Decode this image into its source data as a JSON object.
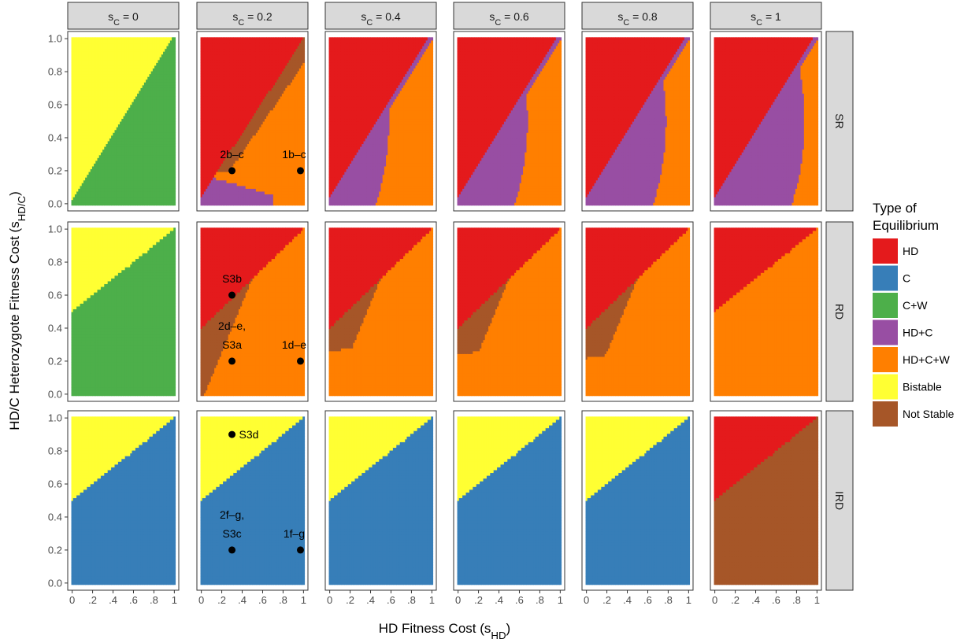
{
  "chart_data": {
    "type": "heatmap",
    "xlabel": "HD Fitness Cost (s",
    "xlabel_sub": "HD",
    "ylabel": "HD/C Heterozygote Fitness Cost (s",
    "ylabel_sub": "HD/C",
    "columns": [
      {
        "label": "s",
        "sub": "C",
        "value": "= 0"
      },
      {
        "label": "s",
        "sub": "C",
        "value": "= 0.2"
      },
      {
        "label": "s",
        "sub": "C",
        "value": "= 0.4"
      },
      {
        "label": "s",
        "sub": "C",
        "value": "= 0.6"
      },
      {
        "label": "s",
        "sub": "C",
        "value": "= 0.8"
      },
      {
        "label": "s",
        "sub": "C",
        "value": "= 1"
      }
    ],
    "rows": [
      "SR",
      "RD",
      "IRD"
    ],
    "xlim": [
      0,
      1
    ],
    "ylim": [
      0,
      1
    ],
    "x_ticks": [
      "0",
      ".2",
      ".4",
      ".6",
      ".8",
      "1"
    ],
    "y_ticks": [
      "0.0",
      "0.2",
      "0.4",
      "0.6",
      "0.8",
      "1.0"
    ],
    "legend": {
      "title_line1": "Type of",
      "title_line2": "Equilibrium",
      "position": "right",
      "entries": [
        {
          "name": "HD",
          "color": "#e41a1c"
        },
        {
          "name": "C",
          "color": "#377eb8"
        },
        {
          "name": "C+W",
          "color": "#4daf4a"
        },
        {
          "name": "HD+C",
          "color": "#984ea3"
        },
        {
          "name": "HD+C+W",
          "color": "#ff7f00"
        },
        {
          "name": "Bistable",
          "color": "#ffff33"
        },
        {
          "name": "Not Stable",
          "color": "#a65628"
        }
      ]
    },
    "points": [
      {
        "row": 0,
        "col": 1,
        "x": 0.3,
        "y": 0.2,
        "label_lines": [
          "2b–c"
        ],
        "label_side": "above"
      },
      {
        "row": 0,
        "col": 1,
        "x": 0.97,
        "y": 0.2,
        "label_lines": [
          "1b–c"
        ],
        "label_side": "above-left"
      },
      {
        "row": 1,
        "col": 1,
        "x": 0.3,
        "y": 0.6,
        "label_lines": [
          "S3b"
        ],
        "label_side": "above"
      },
      {
        "row": 1,
        "col": 1,
        "x": 0.3,
        "y": 0.2,
        "label_lines": [
          "2d–e,",
          "S3a"
        ],
        "label_side": "above"
      },
      {
        "row": 1,
        "col": 1,
        "x": 0.97,
        "y": 0.2,
        "label_lines": [
          "1d–e"
        ],
        "label_side": "above-left"
      },
      {
        "row": 2,
        "col": 1,
        "x": 0.3,
        "y": 0.9,
        "label_lines": [
          "S3d"
        ],
        "label_side": "right"
      },
      {
        "row": 2,
        "col": 1,
        "x": 0.3,
        "y": 0.2,
        "label_lines": [
          "2f–g,",
          "S3c"
        ],
        "label_side": "above"
      },
      {
        "row": 2,
        "col": 1,
        "x": 0.97,
        "y": 0.2,
        "label_lines": [
          "1f–g"
        ],
        "label_side": "above-left"
      }
    ]
  }
}
